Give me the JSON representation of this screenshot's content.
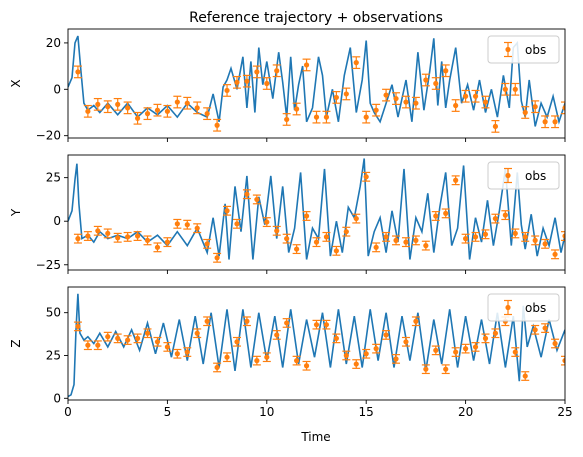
{
  "title": "Reference trajectory + observations",
  "xlabel": "Time",
  "colors": {
    "trajectory": "#1f77b4",
    "observations": "#ff7f0e"
  },
  "chart_data": [
    {
      "type": "line",
      "ylabel": "X",
      "xlim": [
        0,
        25
      ],
      "ylim": [
        -21,
        26
      ],
      "yticks": [
        -20,
        0,
        20
      ],
      "xticks": [
        0,
        5,
        10,
        15,
        20,
        25
      ],
      "legend": {
        "label": "obs",
        "position": "top-right"
      },
      "series": [
        {
          "role": "trajectory",
          "x": [
            0,
            0.2,
            0.35,
            0.5,
            0.65,
            0.8,
            1.0,
            1.3,
            1.6,
            2.0,
            2.5,
            3.0,
            3.5,
            4.0,
            4.5,
            5.0,
            5.5,
            6.0,
            6.5,
            7.0,
            7.3,
            7.6,
            7.8,
            8.0,
            8.2,
            8.5,
            8.8,
            9.0,
            9.2,
            9.4,
            9.6,
            9.8,
            10.0,
            10.3,
            10.6,
            10.8,
            11.0,
            11.2,
            11.4,
            11.6,
            11.8,
            12.0,
            12.3,
            12.6,
            12.8,
            13.0,
            13.3,
            13.6,
            13.9,
            14.2,
            14.5,
            14.8,
            15.0,
            15.2,
            15.4,
            15.7,
            16.0,
            16.3,
            16.6,
            17.0,
            17.3,
            17.6,
            17.9,
            18.2,
            18.4,
            18.6,
            18.8,
            19.0,
            19.2,
            19.5,
            19.8,
            20.1,
            20.4,
            20.7,
            21.0,
            21.3,
            21.6,
            21.9,
            22.2,
            22.4,
            22.6,
            22.8,
            23.0,
            23.2,
            23.5,
            23.8,
            24.1,
            24.4,
            24.7,
            25.0
          ],
          "y": [
            1,
            5,
            20,
            23,
            8,
            -6,
            -9,
            -7,
            -10,
            -6,
            -11,
            -6,
            -12,
            -8,
            -11,
            -7,
            -12,
            -6,
            -10,
            -12,
            -2,
            -14,
            1,
            4,
            9,
            0,
            14,
            -8,
            12,
            -10,
            18,
            2,
            12,
            -4,
            16,
            3,
            -12,
            14,
            -9,
            2,
            10,
            -14,
            -8,
            14,
            6,
            -12,
            0,
            -14,
            6,
            18,
            -10,
            4,
            21,
            -6,
            -10,
            -14,
            -6,
            2,
            -12,
            4,
            -14,
            16,
            -9,
            8,
            22,
            -7,
            12,
            -8,
            4,
            18,
            -6,
            2,
            -9,
            4,
            -10,
            0,
            -12,
            6,
            -8,
            18,
            20,
            -5,
            -12,
            4,
            -16,
            -6,
            -12,
            -3,
            -14,
            -6
          ]
        },
        {
          "role": "observations",
          "name": "obs",
          "x": [
            0.5,
            1.0,
            1.5,
            2.0,
            2.5,
            3.0,
            3.5,
            4.0,
            4.5,
            5.0,
            5.5,
            6.0,
            6.5,
            7.0,
            7.5,
            8.0,
            8.5,
            9.0,
            9.5,
            10.0,
            10.5,
            11.0,
            11.5,
            12.0,
            12.5,
            13.0,
            13.5,
            14.0,
            14.5,
            15.0,
            15.5,
            16.0,
            16.5,
            17.0,
            17.5,
            18.0,
            18.5,
            19.0,
            19.5,
            20.0,
            20.5,
            21.0,
            21.5,
            22.0,
            22.5,
            23.0,
            23.5,
            24.0,
            24.5,
            25.0
          ],
          "y": [
            7.5,
            -9.5,
            -6.5,
            -7.5,
            -6.5,
            -8,
            -12.5,
            -10.5,
            -9,
            -9.5,
            -5.5,
            -6,
            -8,
            -10.5,
            -15.5,
            -0.5,
            3,
            3.5,
            7.5,
            2.5,
            8,
            -13,
            -8.5,
            10.5,
            -12,
            -12,
            -3.5,
            -2,
            11.5,
            -12,
            -9,
            -2.5,
            -4,
            -5.5,
            -6,
            4,
            2.5,
            8,
            -7,
            -3,
            -3,
            -5.5,
            -16,
            0,
            0,
            -10,
            -7.5,
            -14,
            -14,
            -8
          ],
          "error": 2.5
        }
      ]
    },
    {
      "type": "line",
      "ylabel": "Y",
      "xlim": [
        0,
        25
      ],
      "ylim": [
        -28,
        38
      ],
      "yticks": [
        -25,
        0,
        25
      ],
      "xticks": [
        0,
        5,
        10,
        15,
        20,
        25
      ],
      "legend": {
        "label": "obs",
        "position": "top-right"
      },
      "series": [
        {
          "role": "trajectory",
          "x": [
            0,
            0.2,
            0.35,
            0.45,
            0.55,
            0.7,
            1.0,
            1.3,
            1.6,
            2.0,
            2.5,
            3.0,
            3.5,
            4.0,
            4.5,
            5.0,
            5.5,
            6.0,
            6.5,
            7.0,
            7.3,
            7.6,
            7.9,
            8.1,
            8.4,
            8.7,
            9.0,
            9.3,
            9.6,
            9.9,
            10.2,
            10.5,
            10.8,
            11.1,
            11.4,
            11.7,
            12.0,
            12.3,
            12.6,
            12.9,
            13.2,
            13.5,
            13.8,
            14.1,
            14.4,
            14.7,
            14.9,
            15.1,
            15.4,
            15.7,
            16.0,
            16.3,
            16.6,
            16.9,
            17.2,
            17.5,
            17.8,
            18.1,
            18.4,
            18.7,
            19.0,
            19.3,
            19.6,
            19.9,
            20.2,
            20.5,
            20.8,
            21.1,
            21.4,
            21.7,
            22.0,
            22.3,
            22.6,
            22.8,
            23.0,
            23.3,
            23.6,
            23.9,
            24.2,
            24.5,
            24.8,
            25.0
          ],
          "y": [
            0,
            6,
            24,
            33,
            10,
            -10,
            -8,
            -12,
            -6,
            -10,
            -8,
            -10,
            -6,
            -12,
            -8,
            -14,
            -6,
            -14,
            -4,
            -18,
            2,
            -20,
            10,
            -22,
            20,
            -6,
            26,
            -22,
            14,
            -2,
            26,
            -10,
            20,
            -18,
            -4,
            28,
            -22,
            -4,
            -10,
            30,
            -20,
            0,
            -18,
            8,
            2,
            20,
            36,
            -20,
            -6,
            2,
            -18,
            6,
            -12,
            30,
            -22,
            2,
            -6,
            16,
            -18,
            8,
            28,
            -14,
            -4,
            32,
            -22,
            2,
            -12,
            12,
            -14,
            6,
            30,
            -14,
            28,
            -2,
            -16,
            4,
            -20,
            -4,
            -14,
            2,
            -18,
            -8
          ]
        },
        {
          "role": "observations",
          "name": "obs",
          "x": [
            0.5,
            1.0,
            1.5,
            2.0,
            2.5,
            3.0,
            3.5,
            4.0,
            4.5,
            5.0,
            5.5,
            6.0,
            6.5,
            7.0,
            7.5,
            8.0,
            8.5,
            9.0,
            9.5,
            10.0,
            10.5,
            11.0,
            11.5,
            12.0,
            12.5,
            13.0,
            13.5,
            14.0,
            14.5,
            15.0,
            15.5,
            16.0,
            16.5,
            17.0,
            17.5,
            18.0,
            18.5,
            19.0,
            19.5,
            20.0,
            20.5,
            21.0,
            21.5,
            22.0,
            22.5,
            23.0,
            23.5,
            24.0,
            24.5,
            25.0
          ],
          "y": [
            -10,
            -8.5,
            -5.5,
            -7,
            -9.5,
            -9,
            -8.5,
            -11,
            -15,
            -12,
            -1.5,
            -2,
            -4,
            -13,
            -21,
            6,
            -1.5,
            15.5,
            12.5,
            -0.5,
            -5.5,
            -10,
            -16,
            3,
            -12,
            -9,
            -17,
            -6,
            1.5,
            25.5,
            -15,
            -9,
            -11,
            -12,
            -11,
            -14,
            3,
            4.5,
            23.5,
            -10,
            -9,
            -7.5,
            1.5,
            3.5,
            -7,
            -9,
            -11,
            -13,
            -19,
            -8.5
          ],
          "error": 2.5
        }
      ]
    },
    {
      "type": "line",
      "ylabel": "Z",
      "xlim": [
        0,
        25
      ],
      "ylim": [
        -1,
        65
      ],
      "yticks": [
        0,
        25,
        50
      ],
      "xticks": [
        0,
        5,
        10,
        15,
        20,
        25
      ],
      "legend": {
        "label": "obs",
        "position": "top-right"
      },
      "series": [
        {
          "role": "trajectory",
          "x": [
            0,
            0.15,
            0.3,
            0.4,
            0.5,
            0.6,
            0.8,
            1.0,
            1.3,
            1.6,
            2.0,
            2.4,
            2.8,
            3.2,
            3.6,
            4.0,
            4.4,
            4.8,
            5.2,
            5.6,
            6.0,
            6.4,
            6.8,
            7.2,
            7.6,
            8.0,
            8.4,
            8.8,
            9.2,
            9.6,
            10.0,
            10.4,
            10.8,
            11.2,
            11.6,
            12.0,
            12.4,
            12.8,
            13.2,
            13.6,
            14.0,
            14.4,
            14.8,
            15.2,
            15.6,
            16.0,
            16.4,
            16.8,
            17.2,
            17.6,
            18.0,
            18.4,
            18.8,
            19.2,
            19.6,
            20.0,
            20.4,
            20.8,
            21.2,
            21.6,
            22.0,
            22.4,
            22.7,
            22.9,
            23.1,
            23.4,
            23.8,
            24.2,
            24.6,
            25.0
          ],
          "y": [
            1,
            2,
            8,
            40,
            61,
            38,
            34,
            36,
            32,
            38,
            30,
            39,
            30,
            40,
            28,
            44,
            26,
            44,
            24,
            46,
            22,
            48,
            20,
            50,
            18,
            52,
            16,
            52,
            18,
            50,
            22,
            48,
            18,
            52,
            20,
            46,
            24,
            50,
            18,
            52,
            20,
            48,
            18,
            52,
            22,
            50,
            18,
            48,
            22,
            50,
            16,
            46,
            20,
            52,
            18,
            48,
            22,
            46,
            20,
            50,
            18,
            48,
            10,
            54,
            30,
            42,
            24,
            46,
            28,
            40
          ]
        },
        {
          "role": "observations",
          "name": "obs",
          "x": [
            0.5,
            1.0,
            1.5,
            2.0,
            2.5,
            3.0,
            3.5,
            4.0,
            4.5,
            5.0,
            5.5,
            6.0,
            6.5,
            7.0,
            7.5,
            8.0,
            8.5,
            9.0,
            9.5,
            10.0,
            10.5,
            11.0,
            11.5,
            12.0,
            12.5,
            13.0,
            13.5,
            14.0,
            14.5,
            15.0,
            15.5,
            16.0,
            16.5,
            17.0,
            17.5,
            18.0,
            18.5,
            19.0,
            19.5,
            20.0,
            20.5,
            21.0,
            21.5,
            22.0,
            22.5,
            23.0,
            23.5,
            24.0,
            24.5,
            25.0
          ],
          "y": [
            42,
            31,
            31,
            36,
            35,
            34,
            35,
            38,
            33,
            30,
            26,
            27,
            38,
            45,
            18,
            24,
            33,
            45,
            22,
            24,
            37,
            44,
            22,
            19,
            43,
            43,
            35,
            25,
            20,
            26,
            29,
            37,
            23,
            33,
            45,
            17,
            28,
            17,
            27,
            29,
            30,
            35,
            38,
            45,
            27,
            13,
            40,
            41,
            32,
            22
          ],
          "error": 2.5
        }
      ]
    }
  ]
}
